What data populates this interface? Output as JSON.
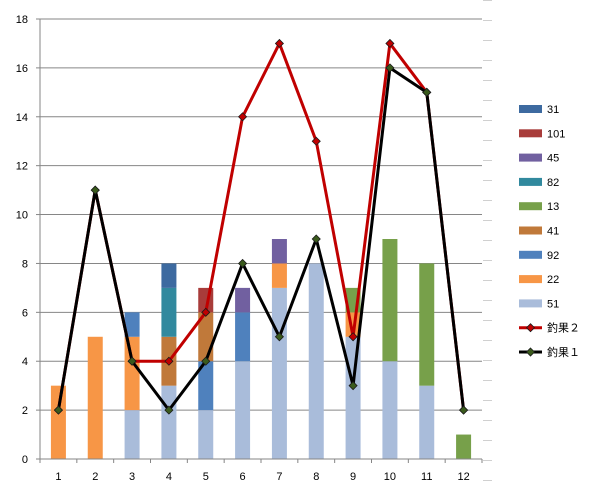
{
  "chart_data": {
    "type": "bar",
    "stacked": true,
    "categories": [
      "1",
      "2",
      "3",
      "4",
      "5",
      "6",
      "7",
      "8",
      "9",
      "10",
      "11",
      "12"
    ],
    "ylim": [
      0,
      18
    ],
    "yticks": [
      "0",
      "2",
      "4",
      "6",
      "8",
      "10",
      "12",
      "14",
      "16",
      "18"
    ],
    "grid": true,
    "legend_position": "right",
    "series": [
      {
        "name": "51",
        "color": "#a9bcda",
        "values": [
          0,
          0,
          2,
          3,
          2,
          4,
          7,
          8,
          5,
          4,
          3,
          0
        ]
      },
      {
        "name": "22",
        "color": "#f79646",
        "values": [
          3,
          5,
          3,
          0,
          0,
          0,
          1,
          0,
          1,
          0,
          0,
          0
        ]
      },
      {
        "name": "92",
        "color": "#4f81bd",
        "values": [
          0,
          0,
          1,
          0,
          2,
          2,
          0,
          0,
          0,
          0,
          0,
          0
        ]
      },
      {
        "name": "41",
        "color": "#c0793a",
        "values": [
          0,
          0,
          0,
          2,
          2,
          0,
          0,
          0,
          0,
          0,
          0,
          0
        ]
      },
      {
        "name": "13",
        "color": "#77a04a",
        "values": [
          0,
          0,
          0,
          0,
          0,
          0,
          0,
          0,
          1,
          5,
          5,
          1
        ]
      },
      {
        "name": "82",
        "color": "#31899e",
        "values": [
          0,
          0,
          0,
          2,
          0,
          0,
          0,
          0,
          0,
          0,
          0,
          0
        ]
      },
      {
        "name": "45",
        "color": "#7160a0",
        "values": [
          0,
          0,
          0,
          0,
          0,
          1,
          1,
          0,
          0,
          0,
          0,
          0
        ]
      },
      {
        "name": "101",
        "color": "#a83c3a",
        "values": [
          0,
          0,
          0,
          0,
          1,
          0,
          0,
          0,
          0,
          0,
          0,
          0
        ]
      },
      {
        "name": "31",
        "color": "#3d6aa0",
        "values": [
          0,
          0,
          0,
          1,
          0,
          0,
          0,
          0,
          0,
          0,
          0,
          0
        ]
      }
    ],
    "lines": [
      {
        "name": "釣果２",
        "color": "#c00000",
        "values": [
          2,
          11,
          4,
          4,
          6,
          14,
          17,
          13,
          5,
          17,
          15,
          2
        ]
      },
      {
        "name": "釣果１",
        "color": "#000000",
        "values": [
          2,
          11,
          4,
          2,
          4,
          8,
          5,
          9,
          3,
          16,
          15,
          2
        ]
      }
    ],
    "legend_order": [
      "31",
      "101",
      "45",
      "82",
      "13",
      "41",
      "92",
      "22",
      "51",
      "釣果２",
      "釣果１"
    ]
  }
}
